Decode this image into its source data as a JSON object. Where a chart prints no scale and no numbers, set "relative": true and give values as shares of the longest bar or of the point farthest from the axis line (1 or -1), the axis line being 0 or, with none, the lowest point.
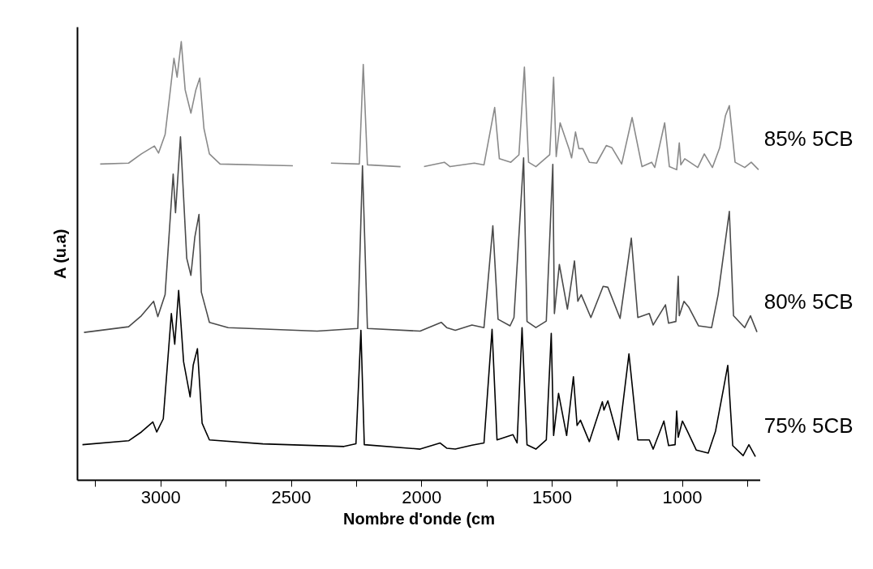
{
  "chart_data": {
    "type": "line",
    "xlabel": "Nombre d'onde (cm",
    "ylabel": "A (u.a)",
    "relative": true,
    "grid": false,
    "xlim": [
      3320,
      700
    ],
    "xticks": [
      {
        "value": 3250,
        "label": null
      },
      3000,
      {
        "value": 2750,
        "label": null
      },
      2500,
      {
        "value": 2250,
        "label": null
      },
      2000,
      {
        "value": 1750,
        "label": null
      },
      1500,
      {
        "value": 1250,
        "label": null
      },
      1000,
      {
        "value": 750,
        "label": null
      }
    ],
    "series": [
      {
        "name": "85% 5CB",
        "color": "#8a8a8a",
        "x": [
          3233,
          3124,
          3075,
          3025,
          3009,
          2984,
          2963,
          2950,
          2938,
          2922,
          2907,
          2885,
          2866,
          2851,
          2835,
          2814,
          2773,
          2494,
          2470,
          2348,
          2239,
          2224,
          2208,
          2081,
          2040,
          1991,
          1913,
          1891,
          1798,
          1761,
          1720,
          1702,
          1658,
          1627,
          1606,
          1590,
          1562,
          1509,
          1494,
          1484,
          1469,
          1435,
          1425,
          1410,
          1397,
          1382,
          1357,
          1329,
          1292,
          1270,
          1233,
          1193,
          1155,
          1118,
          1106,
          1068,
          1050,
          1022,
          1012,
          1006,
          991,
          941,
          916,
          885,
          857,
          835,
          820,
          798,
          761,
          736,
          708
        ],
        "values": [
          0.721,
          0.723,
          0.744,
          0.762,
          0.746,
          0.788,
          0.894,
          0.962,
          0.919,
          1.0,
          0.89,
          0.837,
          0.89,
          0.917,
          0.802,
          0.744,
          0.721,
          0.717,
          null,
          0.723,
          0.721,
          0.948,
          0.719,
          0.715,
          null,
          0.715,
          0.725,
          0.715,
          0.723,
          0.719,
          0.85,
          0.733,
          0.725,
          0.742,
          0.942,
          0.725,
          0.715,
          0.742,
          0.919,
          0.738,
          0.815,
          0.756,
          0.735,
          0.794,
          0.756,
          0.756,
          0.725,
          0.723,
          0.763,
          0.758,
          0.721,
          0.827,
          0.715,
          0.725,
          0.713,
          0.815,
          0.715,
          0.708,
          0.769,
          0.719,
          0.733,
          0.713,
          0.744,
          0.713,
          0.758,
          0.831,
          0.854,
          0.725,
          0.713,
          0.725,
          0.708
        ]
      },
      {
        "name": "80% 5CB",
        "color": "#4a4a4a",
        "x": [
          3295,
          3124,
          3075,
          3028,
          3012,
          2984,
          2953,
          2944,
          2925,
          2901,
          2885,
          2870,
          2854,
          2845,
          2814,
          2742,
          2401,
          2245,
          2227,
          2208,
          2006,
          1925,
          1904,
          1871,
          1807,
          1761,
          1727,
          1707,
          1661,
          1646,
          1609,
          1596,
          1562,
          1522,
          1497,
          1491,
          1472,
          1441,
          1414,
          1401,
          1388,
          1351,
          1304,
          1286,
          1239,
          1196,
          1171,
          1127,
          1112,
          1065,
          1053,
          1025,
          1016,
          1012,
          994,
          975,
          938,
          888,
          863,
          820,
          804,
          761,
          739,
          714
        ],
        "values": [
          0.337,
          0.35,
          0.375,
          0.408,
          0.373,
          0.423,
          0.698,
          0.61,
          0.783,
          0.506,
          0.467,
          0.554,
          0.606,
          0.429,
          0.36,
          0.348,
          0.34,
          0.346,
          0.717,
          0.346,
          0.34,
          0.36,
          0.348,
          0.342,
          0.354,
          0.348,
          0.58,
          0.367,
          0.352,
          0.371,
          0.735,
          0.362,
          0.348,
          0.363,
          0.72,
          0.38,
          0.492,
          0.39,
          0.5,
          0.408,
          0.423,
          0.371,
          0.442,
          0.44,
          0.369,
          0.552,
          0.371,
          0.38,
          0.354,
          0.4,
          0.358,
          0.362,
          0.465,
          0.375,
          0.408,
          0.394,
          0.352,
          0.348,
          0.423,
          0.613,
          0.375,
          0.348,
          0.375,
          0.338
        ]
      },
      {
        "name": "75% 5CB",
        "color": "#000000",
        "x": [
          3301,
          3124,
          3075,
          3031,
          3016,
          2991,
          2960,
          2947,
          2932,
          2913,
          2888,
          2876,
          2860,
          2842,
          2814,
          2609,
          2298,
          2252,
          2233,
          2220,
          2006,
          1929,
          1904,
          1871,
          1807,
          1761,
          1730,
          1711,
          1650,
          1634,
          1615,
          1596,
          1562,
          1522,
          1503,
          1494,
          1475,
          1444,
          1418,
          1404,
          1391,
          1357,
          1307,
          1301,
          1286,
          1245,
          1205,
          1171,
          1127,
          1112,
          1071,
          1053,
          1028,
          1022,
          1016,
          1000,
          981,
          947,
          901,
          873,
          842,
          826,
          807,
          767,
          745,
          720
        ],
        "values": [
          0.081,
          0.09,
          0.11,
          0.133,
          0.11,
          0.14,
          0.38,
          0.31,
          0.433,
          0.27,
          0.19,
          0.263,
          0.3,
          0.13,
          0.092,
          0.083,
          0.077,
          0.083,
          0.342,
          0.081,
          0.071,
          0.085,
          0.073,
          0.071,
          0.08,
          0.085,
          0.344,
          0.092,
          0.104,
          0.085,
          0.348,
          0.081,
          0.071,
          0.092,
          0.335,
          0.102,
          0.198,
          0.102,
          0.236,
          0.125,
          0.137,
          0.088,
          0.179,
          0.16,
          0.181,
          0.092,
          0.288,
          0.092,
          0.092,
          0.071,
          0.135,
          0.079,
          0.081,
          0.158,
          0.098,
          0.135,
          0.112,
          0.069,
          0.062,
          0.112,
          0.21,
          0.262,
          0.079,
          0.056,
          0.081,
          0.054
        ]
      }
    ]
  }
}
